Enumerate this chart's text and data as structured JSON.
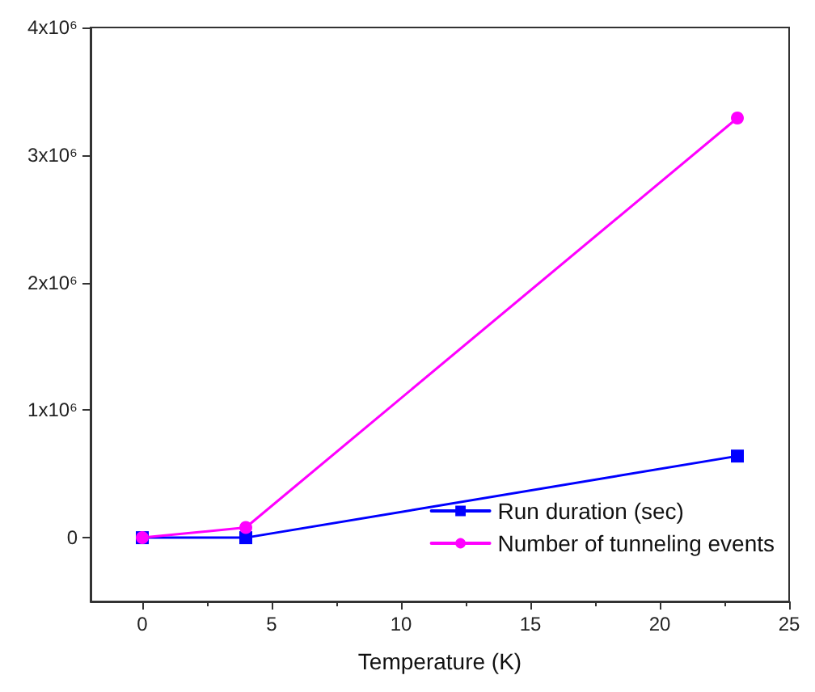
{
  "chart_data": {
    "type": "line",
    "xlabel": "Temperature (K)",
    "xlim": [
      -2,
      25
    ],
    "xticks": [
      0,
      5,
      10,
      15,
      20,
      25
    ],
    "ylim": [
      -500000,
      4000000
    ],
    "yticks": [
      {
        "value": 0,
        "label": "0"
      },
      {
        "value": 1000000,
        "label": "1x10⁶"
      },
      {
        "value": 2000000,
        "label": "2x10⁶"
      },
      {
        "value": 3000000,
        "label": "3x10⁶"
      },
      {
        "value": 4000000,
        "label": "4x10⁶"
      }
    ],
    "x": [
      0,
      4,
      23
    ],
    "series": [
      {
        "name": "Run duration (sec)",
        "color": "#0000ff",
        "marker": "square",
        "values": [
          0,
          0,
          640000
        ]
      },
      {
        "name": "Number of tunneling events",
        "color": "#ff00ff",
        "marker": "circle",
        "values": [
          0,
          80000,
          3290000
        ]
      }
    ],
    "grid": false,
    "legend": "bottom right",
    "line_style": "solid"
  }
}
